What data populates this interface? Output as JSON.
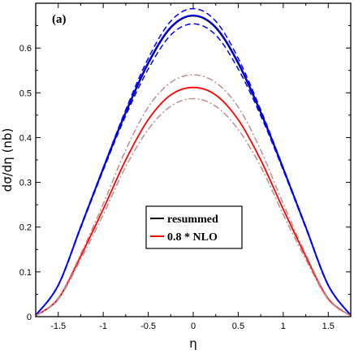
{
  "chart_data": {
    "type": "line",
    "panel_label": "(a)",
    "xlabel": "η",
    "ylabel": "dσ/dη (nb)",
    "xlim": [
      -1.75,
      1.75
    ],
    "ylim": [
      0,
      0.7
    ],
    "x_ticks": [
      -1.5,
      -1,
      -0.5,
      0,
      0.5,
      1,
      1.5
    ],
    "x_tick_labels": [
      "-1.5",
      "-1",
      "-0.5",
      "0",
      "0.5",
      "1",
      "1.5"
    ],
    "y_ticks": [
      0,
      0.1,
      0.2,
      0.3,
      0.4,
      0.5,
      0.6
    ],
    "y_tick_labels": [
      "0",
      "0.1",
      "0.2",
      "0.3",
      "0.4",
      "0.5",
      "0.6"
    ],
    "grid": false,
    "legend_position": "center",
    "x": [
      -1.75,
      -1.5,
      -1.25,
      -1.0,
      -0.75,
      -0.5,
      -0.25,
      0,
      0.25,
      0.5,
      0.75,
      1.0,
      1.25,
      1.5,
      1.75
    ],
    "series": [
      {
        "name": "resummed",
        "color": "#000000",
        "dash": "solid",
        "values": [
          0.003,
          0.07,
          0.2,
          0.33,
          0.455,
          0.565,
          0.645,
          0.672,
          0.645,
          0.565,
          0.455,
          0.33,
          0.2,
          0.07,
          0.003
        ]
      },
      {
        "name": "",
        "color": "#0000ff",
        "dash": "dashed",
        "values": [
          0.003,
          0.071,
          0.202,
          0.333,
          0.462,
          0.577,
          0.66,
          0.688,
          0.66,
          0.577,
          0.462,
          0.333,
          0.202,
          0.071,
          0.003
        ]
      },
      {
        "name": "",
        "color": "#0000ff",
        "dash": "dashed",
        "values": [
          0.003,
          0.069,
          0.198,
          0.327,
          0.449,
          0.553,
          0.629,
          0.654,
          0.629,
          0.553,
          0.449,
          0.327,
          0.198,
          0.069,
          0.003
        ]
      },
      {
        "name": "",
        "color": "#0000ff",
        "dash": "solid",
        "values": [
          0.003,
          0.07,
          0.2,
          0.332,
          0.458,
          0.568,
          0.647,
          0.673,
          0.647,
          0.568,
          0.458,
          0.332,
          0.2,
          0.07,
          0.003
        ]
      },
      {
        "name": "0.8 * NLO",
        "color": "#ff0000",
        "dash": "solid",
        "values": [
          0.002,
          0.04,
          0.135,
          0.24,
          0.35,
          0.44,
          0.495,
          0.512,
          0.495,
          0.44,
          0.35,
          0.24,
          0.135,
          0.04,
          0.002
        ]
      },
      {
        "name": "",
        "color": "#bc8f8f",
        "dash": "dashdot",
        "values": [
          0.002,
          0.042,
          0.14,
          0.252,
          0.372,
          0.468,
          0.523,
          0.54,
          0.523,
          0.468,
          0.372,
          0.252,
          0.14,
          0.042,
          0.002
        ]
      },
      {
        "name": "",
        "color": "#bc8f8f",
        "dash": "dashdot",
        "values": [
          0.002,
          0.038,
          0.128,
          0.228,
          0.335,
          0.418,
          0.47,
          0.487,
          0.47,
          0.418,
          0.335,
          0.228,
          0.128,
          0.038,
          0.002
        ]
      }
    ]
  }
}
